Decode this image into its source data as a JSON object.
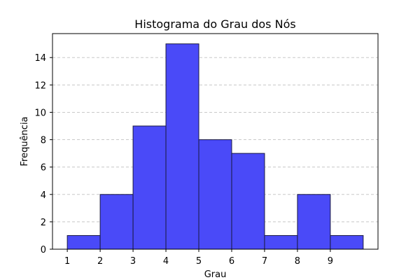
{
  "chart_data": {
    "type": "bar",
    "title": "Histograma do Grau dos Nós",
    "xlabel": "Grau",
    "ylabel": "Frequência",
    "bins": [
      {
        "start": 1,
        "end": 2,
        "value": 1
      },
      {
        "start": 2,
        "end": 3,
        "value": 4
      },
      {
        "start": 3,
        "end": 4,
        "value": 9
      },
      {
        "start": 4,
        "end": 5,
        "value": 15
      },
      {
        "start": 5,
        "end": 6,
        "value": 8
      },
      {
        "start": 6,
        "end": 7,
        "value": 7
      },
      {
        "start": 7,
        "end": 8,
        "value": 1
      },
      {
        "start": 8,
        "end": 9,
        "value": 4
      },
      {
        "start": 9,
        "end": 10,
        "value": 1
      }
    ],
    "xlim": [
      0.55,
      10.45
    ],
    "ylim": [
      0,
      15.75
    ],
    "xticks": [
      1,
      2,
      3,
      4,
      5,
      6,
      7,
      8,
      9
    ],
    "yticks": [
      0,
      2,
      4,
      6,
      8,
      10,
      12,
      14
    ],
    "grid": "y dashed",
    "colors": {
      "bar_fill": "#4a4af8",
      "bar_edge": "#1a1a40",
      "grid": "#c8c8c8"
    }
  }
}
